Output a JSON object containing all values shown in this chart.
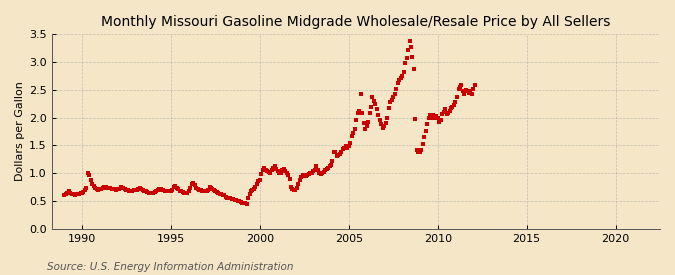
{
  "title": "Monthly Missouri Gasoline Midgrade Wholesale/Resale Price by All Sellers",
  "ylabel": "Dollars per Gallon",
  "source": "Source: U.S. Energy Information Administration",
  "background_color": "#f5e6c8",
  "plot_bg_color": "#f5e6c8",
  "marker_color": "#cc0000",
  "grid_color": "#aaaaaa",
  "xlim": [
    1988.3,
    2022.5
  ],
  "ylim": [
    0.0,
    3.5
  ],
  "yticks": [
    0.0,
    0.5,
    1.0,
    1.5,
    2.0,
    2.5,
    3.0,
    3.5
  ],
  "xticks": [
    1990,
    1995,
    2000,
    2005,
    2010,
    2015,
    2020
  ],
  "title_fontsize": 10,
  "tick_fontsize": 8,
  "ylabel_fontsize": 8,
  "source_fontsize": 7.5,
  "data": [
    [
      1989.0,
      0.6
    ],
    [
      1989.08,
      0.62
    ],
    [
      1989.17,
      0.65
    ],
    [
      1989.25,
      0.67
    ],
    [
      1989.33,
      0.65
    ],
    [
      1989.42,
      0.63
    ],
    [
      1989.5,
      0.62
    ],
    [
      1989.58,
      0.61
    ],
    [
      1989.67,
      0.63
    ],
    [
      1989.75,
      0.63
    ],
    [
      1989.83,
      0.63
    ],
    [
      1989.92,
      0.64
    ],
    [
      1990.0,
      0.64
    ],
    [
      1990.08,
      0.66
    ],
    [
      1990.17,
      0.7
    ],
    [
      1990.25,
      0.73
    ],
    [
      1990.33,
      1.0
    ],
    [
      1990.42,
      0.97
    ],
    [
      1990.5,
      0.88
    ],
    [
      1990.58,
      0.8
    ],
    [
      1990.67,
      0.76
    ],
    [
      1990.75,
      0.73
    ],
    [
      1990.83,
      0.72
    ],
    [
      1990.92,
      0.7
    ],
    [
      1991.0,
      0.72
    ],
    [
      1991.08,
      0.72
    ],
    [
      1991.17,
      0.73
    ],
    [
      1991.25,
      0.75
    ],
    [
      1991.33,
      0.75
    ],
    [
      1991.42,
      0.74
    ],
    [
      1991.5,
      0.73
    ],
    [
      1991.58,
      0.73
    ],
    [
      1991.67,
      0.72
    ],
    [
      1991.75,
      0.71
    ],
    [
      1991.83,
      0.71
    ],
    [
      1991.92,
      0.7
    ],
    [
      1992.0,
      0.71
    ],
    [
      1992.08,
      0.72
    ],
    [
      1992.17,
      0.75
    ],
    [
      1992.25,
      0.74
    ],
    [
      1992.33,
      0.73
    ],
    [
      1992.42,
      0.71
    ],
    [
      1992.5,
      0.7
    ],
    [
      1992.58,
      0.69
    ],
    [
      1992.67,
      0.68
    ],
    [
      1992.75,
      0.68
    ],
    [
      1992.83,
      0.68
    ],
    [
      1992.92,
      0.69
    ],
    [
      1993.0,
      0.7
    ],
    [
      1993.08,
      0.7
    ],
    [
      1993.17,
      0.72
    ],
    [
      1993.25,
      0.73
    ],
    [
      1993.33,
      0.72
    ],
    [
      1993.42,
      0.7
    ],
    [
      1993.5,
      0.68
    ],
    [
      1993.58,
      0.67
    ],
    [
      1993.67,
      0.66
    ],
    [
      1993.75,
      0.65
    ],
    [
      1993.83,
      0.64
    ],
    [
      1993.92,
      0.64
    ],
    [
      1994.0,
      0.65
    ],
    [
      1994.08,
      0.66
    ],
    [
      1994.17,
      0.68
    ],
    [
      1994.25,
      0.7
    ],
    [
      1994.33,
      0.72
    ],
    [
      1994.42,
      0.71
    ],
    [
      1994.5,
      0.7
    ],
    [
      1994.58,
      0.69
    ],
    [
      1994.67,
      0.68
    ],
    [
      1994.75,
      0.67
    ],
    [
      1994.83,
      0.67
    ],
    [
      1994.92,
      0.67
    ],
    [
      1995.0,
      0.68
    ],
    [
      1995.08,
      0.7
    ],
    [
      1995.17,
      0.75
    ],
    [
      1995.25,
      0.76
    ],
    [
      1995.33,
      0.74
    ],
    [
      1995.42,
      0.71
    ],
    [
      1995.5,
      0.68
    ],
    [
      1995.58,
      0.67
    ],
    [
      1995.67,
      0.66
    ],
    [
      1995.75,
      0.65
    ],
    [
      1995.83,
      0.65
    ],
    [
      1995.92,
      0.65
    ],
    [
      1996.0,
      0.67
    ],
    [
      1996.08,
      0.73
    ],
    [
      1996.17,
      0.8
    ],
    [
      1996.25,
      0.82
    ],
    [
      1996.33,
      0.78
    ],
    [
      1996.42,
      0.74
    ],
    [
      1996.5,
      0.72
    ],
    [
      1996.58,
      0.7
    ],
    [
      1996.67,
      0.69
    ],
    [
      1996.75,
      0.68
    ],
    [
      1996.83,
      0.68
    ],
    [
      1996.92,
      0.68
    ],
    [
      1997.0,
      0.68
    ],
    [
      1997.08,
      0.7
    ],
    [
      1997.17,
      0.75
    ],
    [
      1997.25,
      0.74
    ],
    [
      1997.33,
      0.72
    ],
    [
      1997.42,
      0.7
    ],
    [
      1997.5,
      0.68
    ],
    [
      1997.58,
      0.66
    ],
    [
      1997.67,
      0.65
    ],
    [
      1997.75,
      0.63
    ],
    [
      1997.83,
      0.62
    ],
    [
      1997.92,
      0.6
    ],
    [
      1998.0,
      0.6
    ],
    [
      1998.08,
      0.57
    ],
    [
      1998.17,
      0.55
    ],
    [
      1998.25,
      0.56
    ],
    [
      1998.33,
      0.55
    ],
    [
      1998.42,
      0.54
    ],
    [
      1998.5,
      0.53
    ],
    [
      1998.58,
      0.52
    ],
    [
      1998.67,
      0.51
    ],
    [
      1998.75,
      0.5
    ],
    [
      1998.83,
      0.49
    ],
    [
      1998.92,
      0.48
    ],
    [
      1999.0,
      0.47
    ],
    [
      1999.08,
      0.46
    ],
    [
      1999.17,
      0.46
    ],
    [
      1999.25,
      0.45
    ],
    [
      1999.33,
      0.55
    ],
    [
      1999.42,
      0.63
    ],
    [
      1999.5,
      0.67
    ],
    [
      1999.58,
      0.7
    ],
    [
      1999.67,
      0.72
    ],
    [
      1999.75,
      0.75
    ],
    [
      1999.83,
      0.8
    ],
    [
      1999.92,
      0.85
    ],
    [
      2000.0,
      0.88
    ],
    [
      2000.08,
      0.98
    ],
    [
      2000.17,
      1.05
    ],
    [
      2000.25,
      1.09
    ],
    [
      2000.33,
      1.05
    ],
    [
      2000.42,
      1.03
    ],
    [
      2000.5,
      1.02
    ],
    [
      2000.58,
      1.01
    ],
    [
      2000.67,
      1.06
    ],
    [
      2000.75,
      1.1
    ],
    [
      2000.83,
      1.12
    ],
    [
      2000.92,
      1.08
    ],
    [
      2001.0,
      1.04
    ],
    [
      2001.08,
      1.01
    ],
    [
      2001.17,
      1.0
    ],
    [
      2001.25,
      1.05
    ],
    [
      2001.33,
      1.08
    ],
    [
      2001.42,
      1.04
    ],
    [
      2001.5,
      1.0
    ],
    [
      2001.58,
      0.97
    ],
    [
      2001.67,
      0.9
    ],
    [
      2001.75,
      0.75
    ],
    [
      2001.83,
      0.72
    ],
    [
      2001.92,
      0.7
    ],
    [
      2002.0,
      0.7
    ],
    [
      2002.08,
      0.73
    ],
    [
      2002.17,
      0.8
    ],
    [
      2002.25,
      0.88
    ],
    [
      2002.33,
      0.93
    ],
    [
      2002.42,
      0.96
    ],
    [
      2002.5,
      0.95
    ],
    [
      2002.58,
      0.95
    ],
    [
      2002.67,
      0.97
    ],
    [
      2002.75,
      0.98
    ],
    [
      2002.83,
      1.0
    ],
    [
      2002.92,
      1.0
    ],
    [
      2003.0,
      1.03
    ],
    [
      2003.08,
      1.06
    ],
    [
      2003.17,
      1.12
    ],
    [
      2003.25,
      1.06
    ],
    [
      2003.33,
      1.0
    ],
    [
      2003.42,
      0.98
    ],
    [
      2003.5,
      1.0
    ],
    [
      2003.58,
      1.02
    ],
    [
      2003.67,
      1.05
    ],
    [
      2003.75,
      1.08
    ],
    [
      2003.83,
      1.1
    ],
    [
      2003.92,
      1.12
    ],
    [
      2004.0,
      1.15
    ],
    [
      2004.08,
      1.22
    ],
    [
      2004.17,
      1.38
    ],
    [
      2004.25,
      1.38
    ],
    [
      2004.33,
      1.3
    ],
    [
      2004.42,
      1.33
    ],
    [
      2004.5,
      1.34
    ],
    [
      2004.58,
      1.38
    ],
    [
      2004.67,
      1.43
    ],
    [
      2004.75,
      1.46
    ],
    [
      2004.83,
      1.48
    ],
    [
      2004.92,
      1.45
    ],
    [
      2005.0,
      1.48
    ],
    [
      2005.08,
      1.55
    ],
    [
      2005.17,
      1.67
    ],
    [
      2005.25,
      1.72
    ],
    [
      2005.33,
      1.8
    ],
    [
      2005.42,
      1.95
    ],
    [
      2005.5,
      2.08
    ],
    [
      2005.58,
      2.12
    ],
    [
      2005.67,
      2.42
    ],
    [
      2005.75,
      2.08
    ],
    [
      2005.83,
      1.9
    ],
    [
      2005.92,
      1.8
    ],
    [
      2006.0,
      1.85
    ],
    [
      2006.08,
      1.92
    ],
    [
      2006.17,
      2.08
    ],
    [
      2006.25,
      2.2
    ],
    [
      2006.33,
      2.38
    ],
    [
      2006.42,
      2.3
    ],
    [
      2006.5,
      2.24
    ],
    [
      2006.58,
      2.15
    ],
    [
      2006.67,
      2.05
    ],
    [
      2006.75,
      1.95
    ],
    [
      2006.83,
      1.88
    ],
    [
      2006.92,
      1.82
    ],
    [
      2007.0,
      1.85
    ],
    [
      2007.08,
      1.9
    ],
    [
      2007.17,
      2.0
    ],
    [
      2007.25,
      2.18
    ],
    [
      2007.33,
      2.28
    ],
    [
      2007.42,
      2.32
    ],
    [
      2007.5,
      2.38
    ],
    [
      2007.58,
      2.42
    ],
    [
      2007.67,
      2.52
    ],
    [
      2007.75,
      2.62
    ],
    [
      2007.83,
      2.68
    ],
    [
      2007.92,
      2.72
    ],
    [
      2008.0,
      2.75
    ],
    [
      2008.08,
      2.82
    ],
    [
      2008.17,
      2.98
    ],
    [
      2008.25,
      3.08
    ],
    [
      2008.33,
      3.22
    ],
    [
      2008.42,
      3.38
    ],
    [
      2008.5,
      3.28
    ],
    [
      2008.58,
      3.1
    ],
    [
      2008.67,
      2.88
    ],
    [
      2008.75,
      1.98
    ],
    [
      2008.83,
      1.42
    ],
    [
      2008.92,
      1.38
    ],
    [
      2009.0,
      1.38
    ],
    [
      2009.08,
      1.42
    ],
    [
      2009.17,
      1.52
    ],
    [
      2009.25,
      1.65
    ],
    [
      2009.33,
      1.76
    ],
    [
      2009.42,
      1.88
    ],
    [
      2009.5,
      2.0
    ],
    [
      2009.58,
      2.05
    ],
    [
      2009.67,
      2.0
    ],
    [
      2009.75,
      2.05
    ],
    [
      2009.83,
      2.0
    ],
    [
      2009.92,
      2.02
    ],
    [
      2010.0,
      2.0
    ],
    [
      2010.08,
      1.92
    ],
    [
      2010.17,
      1.95
    ],
    [
      2010.25,
      2.06
    ],
    [
      2010.33,
      2.11
    ],
    [
      2010.42,
      2.15
    ],
    [
      2010.5,
      2.06
    ],
    [
      2010.58,
      2.08
    ],
    [
      2010.67,
      2.12
    ],
    [
      2010.75,
      2.18
    ],
    [
      2010.83,
      2.2
    ],
    [
      2010.92,
      2.22
    ],
    [
      2011.0,
      2.28
    ],
    [
      2011.08,
      2.38
    ],
    [
      2011.17,
      2.52
    ],
    [
      2011.25,
      2.56
    ],
    [
      2011.33,
      2.59
    ],
    [
      2011.42,
      2.48
    ],
    [
      2011.5,
      2.42
    ],
    [
      2011.58,
      2.5
    ],
    [
      2011.67,
      2.48
    ],
    [
      2011.75,
      2.44
    ],
    [
      2011.83,
      2.48
    ],
    [
      2011.92,
      2.42
    ],
    [
      2012.0,
      2.52
    ],
    [
      2012.08,
      2.58
    ]
  ]
}
